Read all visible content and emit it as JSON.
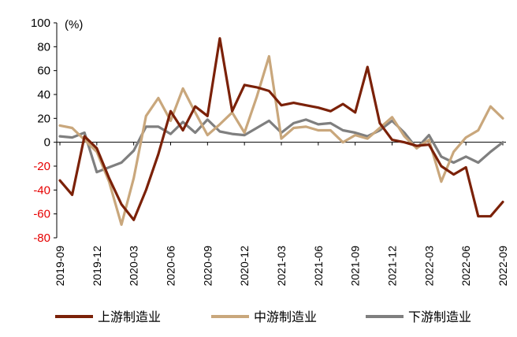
{
  "chart_data": {
    "type": "line",
    "unit_label": "(%)",
    "ylim": [
      -80,
      100
    ],
    "y_ticks": [
      100,
      80,
      60,
      40,
      20,
      0,
      -20,
      -40,
      -60,
      -80
    ],
    "negative_tick_color": "#E60000",
    "x": [
      "2019-09",
      "2019-10",
      "2019-11",
      "2019-12",
      "2020-01",
      "2020-02",
      "2020-03",
      "2020-04",
      "2020-05",
      "2020-06",
      "2020-07",
      "2020-08",
      "2020-09",
      "2020-10",
      "2020-11",
      "2020-12",
      "2021-01",
      "2021-02",
      "2021-03",
      "2021-04",
      "2021-05",
      "2021-06",
      "2021-07",
      "2021-08",
      "2021-09",
      "2021-10",
      "2021-11",
      "2021-12",
      "2022-01",
      "2022-02",
      "2022-03",
      "2022-04",
      "2022-05",
      "2022-06",
      "2022-07",
      "2022-08",
      "2022-09"
    ],
    "x_tick_labels": [
      "2019-09",
      "2019-12",
      "2020-03",
      "2020-06",
      "2020-09",
      "2020-12",
      "2021-03",
      "2021-06",
      "2021-09",
      "2021-12",
      "2022-03",
      "2022-06",
      "2022-09"
    ],
    "grid": false,
    "legend_position": "bottom",
    "series": [
      {
        "name": "上游制造业",
        "color": "#7B2108",
        "values": [
          -32,
          -44,
          5,
          -5,
          -30,
          -52,
          -65,
          -40,
          -10,
          26,
          10,
          30,
          22,
          87,
          26,
          48,
          46,
          43,
          31,
          33,
          31,
          29,
          26,
          32,
          25,
          63,
          16,
          2,
          0,
          -3,
          -2,
          -20,
          -27,
          -21,
          -62,
          -62,
          -50
        ]
      },
      {
        "name": "中游制造业",
        "color": "#C9A77C",
        "values": [
          14,
          12,
          2,
          -8,
          -33,
          -69,
          -30,
          22,
          37,
          18,
          45,
          25,
          6,
          15,
          25,
          8,
          38,
          72,
          3,
          12,
          13,
          10,
          10,
          0,
          6,
          3,
          12,
          21,
          5,
          -5,
          2,
          -33,
          -8,
          4,
          10,
          30,
          20
        ]
      },
      {
        "name": "下游制造业",
        "color": "#7F7F7F",
        "values": [
          5,
          4,
          8,
          -25,
          -21,
          -17,
          -7,
          13,
          13,
          7,
          17,
          8,
          19,
          9,
          7,
          6,
          12,
          18,
          8,
          16,
          19,
          15,
          16,
          10,
          8,
          5,
          10,
          18,
          8,
          -5,
          6,
          -12,
          -17,
          -12,
          -17,
          -8,
          0
        ]
      }
    ]
  }
}
